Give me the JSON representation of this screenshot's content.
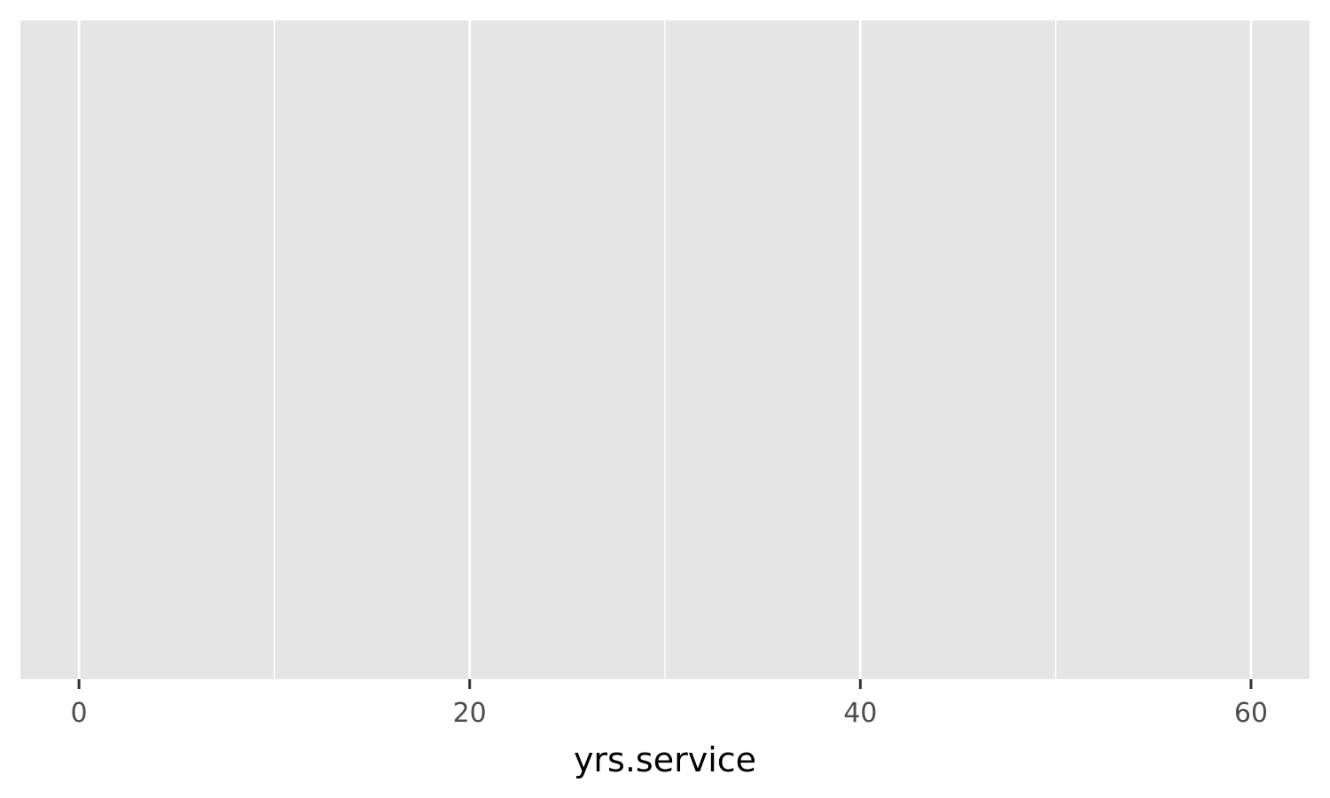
{
  "chart_data": {
    "type": "scatter",
    "xlabel": "yrs.service",
    "ylabel": "",
    "title": "",
    "xlim": [
      -3,
      63
    ],
    "x_major_ticks": [
      0,
      20,
      40,
      60
    ],
    "x_minor_gridlines": [
      10,
      30,
      50
    ],
    "y_axis_shown": false,
    "grid": true,
    "series": [],
    "colors": {
      "panel_background": "#E5E5E5",
      "gridline": "#FFFFFF",
      "tick_mark": "#333333",
      "tick_label": "#4D4D4D",
      "axis_title": "#000000"
    }
  }
}
